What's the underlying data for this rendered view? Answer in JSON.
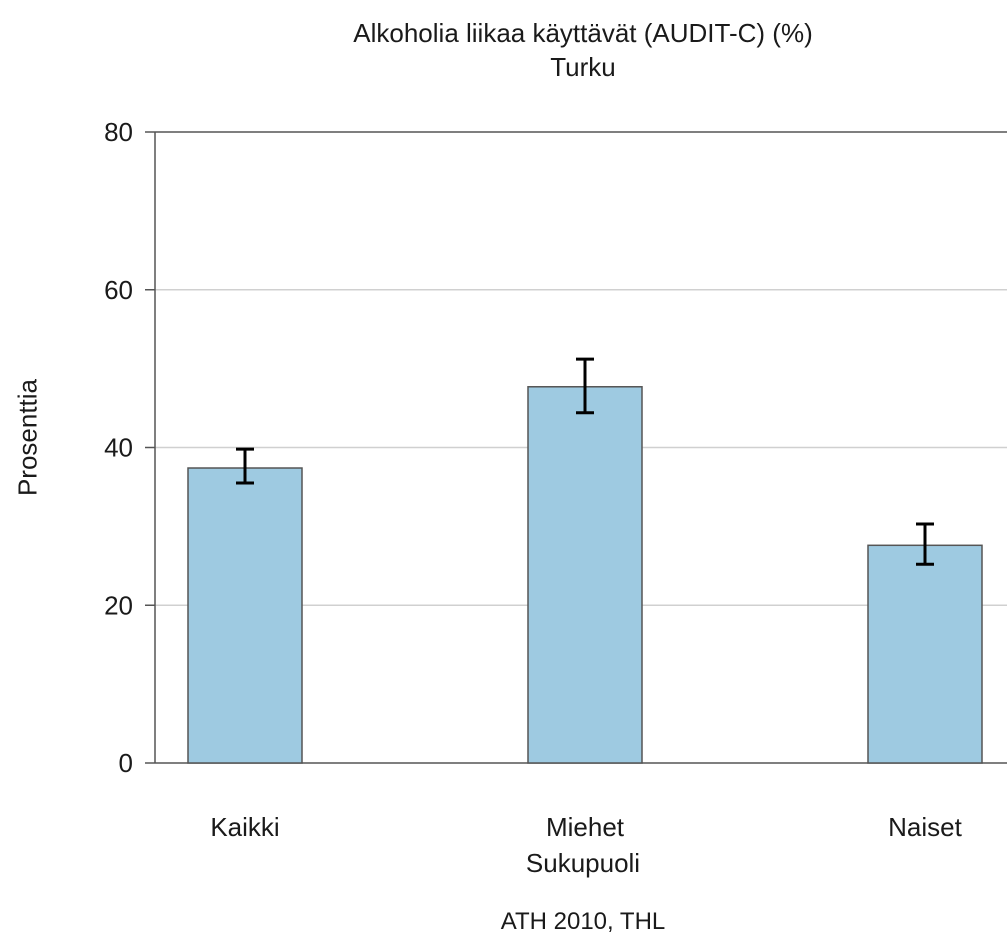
{
  "chart_data": {
    "type": "bar",
    "title": "Alkoholia liikaa käyttävät (AUDIT-C) (%)",
    "subtitle": "Turku",
    "xlabel": "Sukupuoli",
    "ylabel": "Prosenttia",
    "source": "ATH 2010, THL",
    "categories": [
      "Kaikki",
      "Miehet",
      "Naiset"
    ],
    "values": [
      37.4,
      47.7,
      27.6
    ],
    "error_low": [
      35.5,
      44.4,
      25.2
    ],
    "error_high": [
      39.8,
      51.2,
      30.3
    ],
    "ylim": [
      0,
      80
    ],
    "yticks": [
      0,
      20,
      40,
      60,
      80
    ],
    "grid": true,
    "colors": {
      "bar_fill": "#9ecae1",
      "bar_stroke": "#555555",
      "grid": "#d0d0d0",
      "axis": "#555555",
      "error_bar": "#000000"
    }
  }
}
